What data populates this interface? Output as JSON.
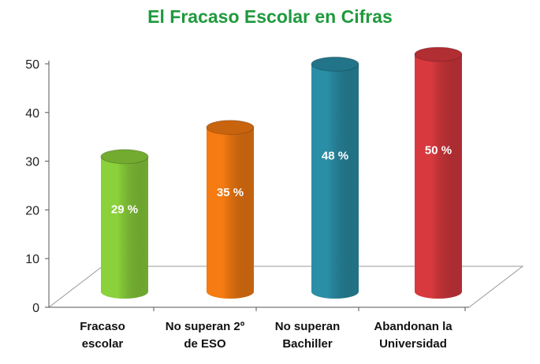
{
  "chart_data": {
    "type": "bar",
    "title": "El Fracaso Escolar en Cifras",
    "xlabel": "",
    "ylabel": "",
    "ylim": [
      0,
      50
    ],
    "yticks": [
      0,
      10,
      20,
      30,
      40,
      50
    ],
    "grid": false,
    "categories": [
      [
        "Fracaso",
        "escolar"
      ],
      [
        "No superan 2º",
        "de ESO"
      ],
      [
        "No superan",
        "Bachiller"
      ],
      [
        "Abandonan la",
        "Universidad"
      ]
    ],
    "values": [
      29,
      35,
      48,
      50
    ],
    "data_labels": [
      "29 %",
      "35 %",
      "48 %",
      "50 %"
    ],
    "colors": [
      "#8bd13b",
      "#f57b12",
      "#2a8ea6",
      "#d8393e"
    ]
  }
}
